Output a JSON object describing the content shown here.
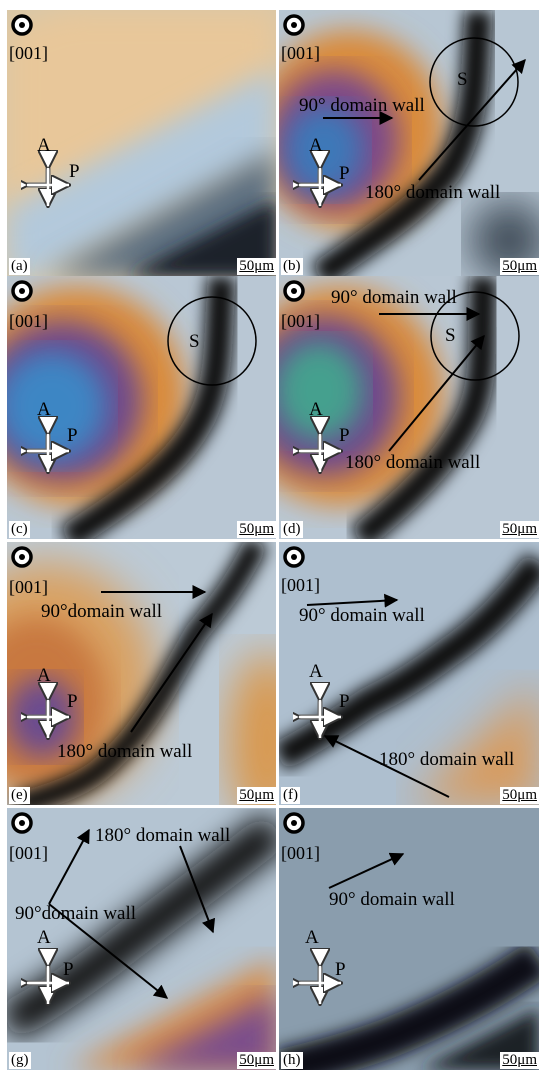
{
  "figure": {
    "zone_axis": "[001]",
    "analyzer": "A",
    "polarizer": "P",
    "scale_bar": "50μm",
    "panels": [
      {
        "id": "a",
        "label": "(a)",
        "annotations": []
      },
      {
        "id": "b",
        "label": "(b)",
        "annotations": [
          "90° domain wall",
          "180° domain wall",
          "S"
        ]
      },
      {
        "id": "c",
        "label": "(c)",
        "annotations": [
          "S"
        ]
      },
      {
        "id": "d",
        "label": "(d)",
        "annotations": [
          "90° domain wall",
          "180° domain wall",
          "S"
        ]
      },
      {
        "id": "e",
        "label": "(e)",
        "annotations": [
          "90°domain wall",
          "180° domain wall"
        ]
      },
      {
        "id": "f",
        "label": "(f)",
        "annotations": [
          "90° domain wall",
          "180° domain wall"
        ]
      },
      {
        "id": "g",
        "label": "(g)",
        "annotations": [
          "180° domain wall",
          "90°domain wall"
        ]
      },
      {
        "id": "h",
        "label": "(h)",
        "annotations": [
          "90° domain wall"
        ]
      }
    ]
  }
}
